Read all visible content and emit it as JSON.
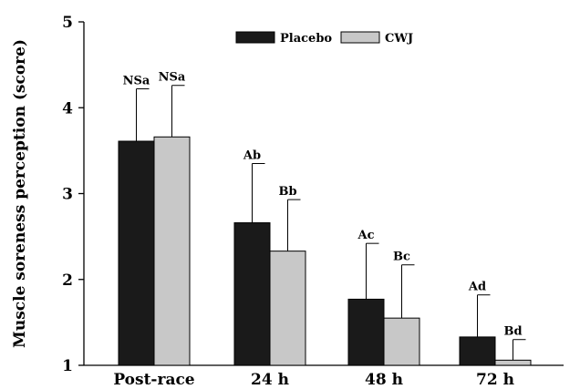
{
  "chart_data": {
    "type": "bar",
    "categories": [
      "Post-race",
      "24 h",
      "48 h",
      "72 h"
    ],
    "ylabel": "Muscle soreness perception (score)",
    "xlabel": "",
    "ylim": [
      1,
      5
    ],
    "yticks": [
      1,
      2,
      3,
      4,
      5
    ],
    "grid": false,
    "legend_position": "top-center",
    "series": [
      {
        "name": "Placebo",
        "color": "#1a1a1a",
        "values": [
          3.61,
          2.66,
          1.77,
          1.33
        ],
        "error_upper": [
          4.22,
          3.35,
          2.42,
          1.82
        ],
        "annotations": [
          "NSa",
          "Ab",
          "Ac",
          "Ad"
        ]
      },
      {
        "name": "CWJ",
        "color": "#c8c8c8",
        "values": [
          3.66,
          2.33,
          1.55,
          1.06
        ],
        "error_upper": [
          4.26,
          2.93,
          2.17,
          1.3
        ],
        "annotations": [
          "NSa",
          "Bb",
          "Bc",
          "Bd"
        ]
      }
    ]
  }
}
